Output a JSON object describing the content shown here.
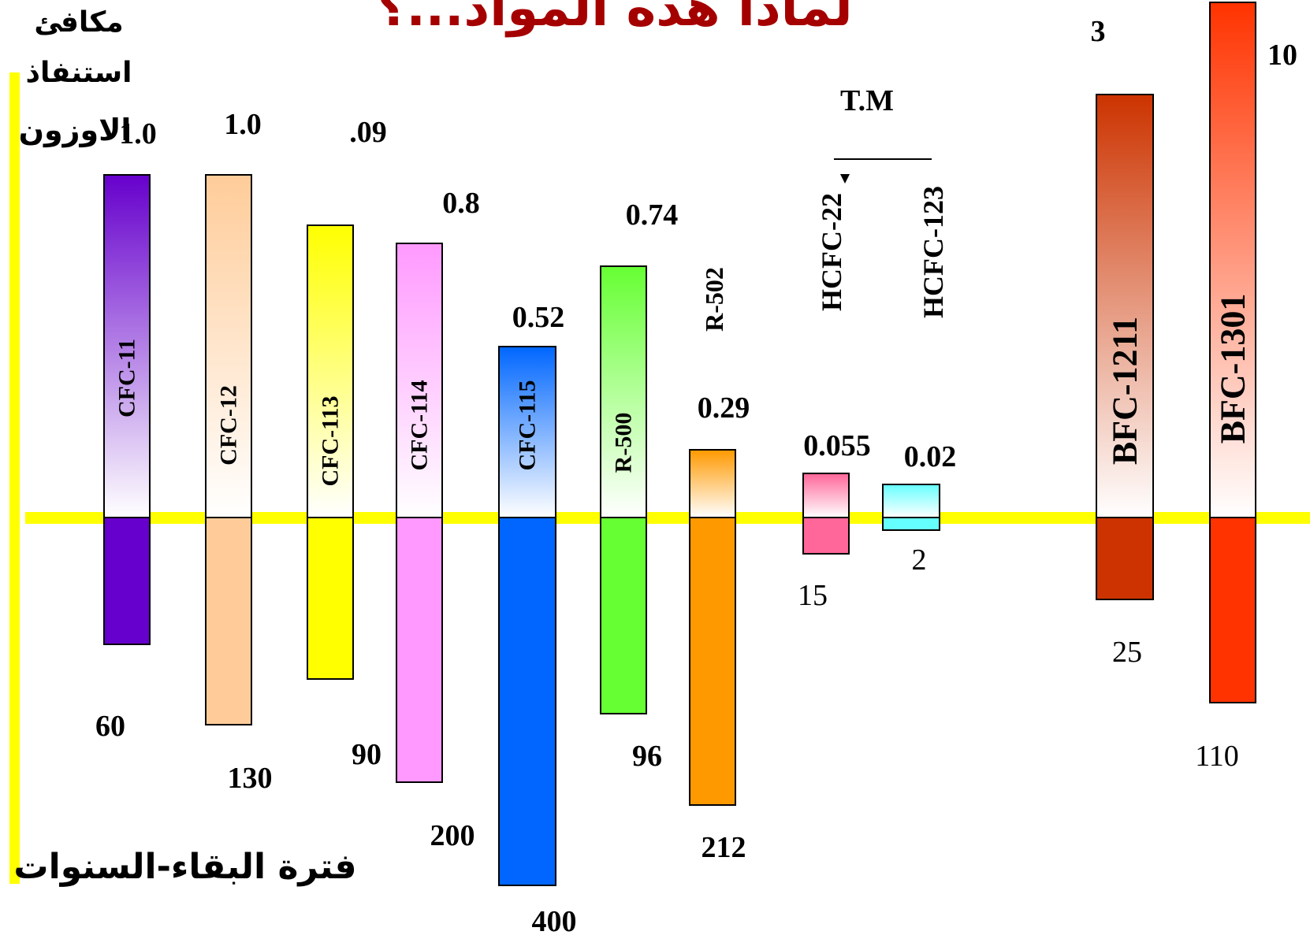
{
  "title": "لماذا هذه المواد...؟",
  "y_axis_top_label": [
    "مكافئ",
    "استنفاذ",
    "الاوزون"
  ],
  "y_axis_bottom_label": "فترة البقاء-السنوات",
  "tm_label": "T.M",
  "colors": {
    "baseline": "#ffff00",
    "axis": "#ffff00",
    "title": "#a50000",
    "label_fill": "#000000"
  },
  "chart_data": {
    "type": "bar",
    "layout_note": "",
    "categories": [
      "CFC-11",
      "CFC-12",
      "CFC-113",
      "CFC-114",
      "CFC-115",
      "R-500",
      "R-502",
      "HCFC-22",
      "HCFC-123",
      "BFC-1211",
      "BFC-1301"
    ],
    "series": [
      {
        "name": "",
        "values": [
          1.0,
          1.0,
          0.09,
          0.8,
          0.52,
          0.74,
          0.29,
          0.055,
          0.02,
          3,
          10
        ]
      },
      {
        "name": "",
        "values": [
          60,
          130,
          90,
          200,
          400,
          96,
          212,
          15,
          2,
          25,
          110
        ]
      }
    ],
    "odp_labels": [
      "1.0",
      "1.0",
      ".09",
      "0.8",
      "0.52",
      "0.74",
      "0.29",
      "0.055",
      "0.02",
      "3",
      "10"
    ],
    "lifetime_labels": [
      "60",
      "130",
      "90",
      "200",
      "400",
      "96",
      "212",
      "15",
      "2",
      "25",
      "110"
    ],
    "bar_colors": [
      "#6600cc",
      "#ffcc99",
      "#ffff00",
      "#ff99ff",
      "#0066ff",
      "#66ff33",
      "#ff9900",
      "#ff6699",
      "#66ffff",
      "#cc3300",
      "#ff3300"
    ]
  }
}
